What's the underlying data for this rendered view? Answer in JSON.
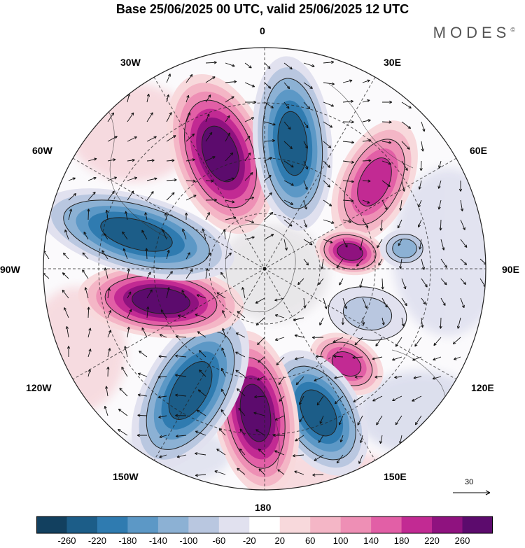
{
  "header": {
    "title": "Base 25/06/2025 00 UTC, valid 25/06/2025 12 UTC",
    "brand": "MODES"
  },
  "map": {
    "projection": "polar stereographic (south pole)",
    "longitude_labels": {
      "top": "0",
      "top_right": "30E",
      "right_upper": "60E",
      "right": "90E",
      "right_lower": "120E",
      "bottom_right": "150E",
      "bottom": "180",
      "bottom_left": "150W",
      "left_lower": "120W",
      "left": "90W",
      "left_upper": "60W",
      "top_left": "30W"
    },
    "vector_reference": "30",
    "anomaly_cells": [
      {
        "name": "positive-anomaly-30w",
        "value": 260
      },
      {
        "name": "negative-anomaly-0",
        "value": -260
      },
      {
        "name": "positive-anomaly-45e",
        "value": 180
      },
      {
        "name": "positive-anomaly-75e",
        "value": 220
      },
      {
        "name": "negative-anomaly-80e",
        "value": -140
      },
      {
        "name": "negative-anomaly-105e",
        "value": -100
      },
      {
        "name": "positive-anomaly-120e",
        "value": 180
      },
      {
        "name": "negative-anomaly-150e",
        "value": -260
      },
      {
        "name": "positive-anomaly-170e",
        "value": 260
      },
      {
        "name": "negative-anomaly-140w",
        "value": -260
      },
      {
        "name": "positive-anomaly-90w",
        "value": 260
      },
      {
        "name": "negative-anomaly-70w",
        "value": -260
      }
    ]
  },
  "colorbar": {
    "colors": [
      "#12405f",
      "#1c5d88",
      "#2f7bb0",
      "#5c98c6",
      "#8cb1d4",
      "#b9c7e0",
      "#e1e1ef",
      "#ffffff",
      "#f8d9dc",
      "#f4b6c6",
      "#ee8fb5",
      "#e25fa6",
      "#c22a93",
      "#8f127f",
      "#5c0b6d"
    ],
    "tick_labels": [
      "-260",
      "-220",
      "-180",
      "-140",
      "-100",
      "-60",
      "-20",
      "20",
      "60",
      "100",
      "140",
      "180",
      "220",
      "260"
    ]
  }
}
